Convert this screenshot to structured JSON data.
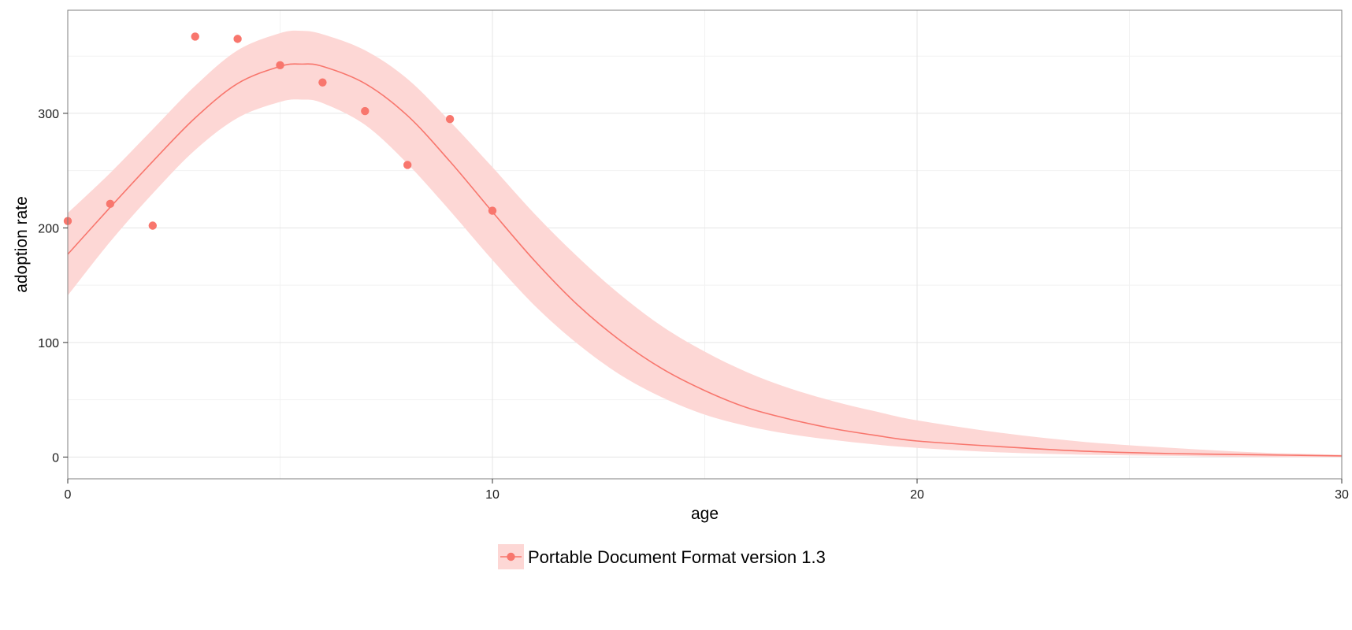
{
  "chart_data": {
    "type": "scatter",
    "xlabel": "age",
    "ylabel": "adoption rate",
    "xlim": [
      0,
      30
    ],
    "ylim": [
      -19,
      390
    ],
    "x_ticks": [
      0,
      10,
      20,
      30
    ],
    "y_ticks": [
      0,
      100,
      200,
      300
    ],
    "grid": true,
    "legend_position": "bottom",
    "series": [
      {
        "name": "Portable Document Format version 1.3",
        "color": "#F8766D",
        "ribbon_color": "#FDD7D5",
        "points": [
          {
            "x": 0,
            "y": 206
          },
          {
            "x": 1,
            "y": 221
          },
          {
            "x": 2,
            "y": 202
          },
          {
            "x": 3,
            "y": 367
          },
          {
            "x": 4,
            "y": 365
          },
          {
            "x": 5,
            "y": 342
          },
          {
            "x": 6,
            "y": 327
          },
          {
            "x": 7,
            "y": 302
          },
          {
            "x": 8,
            "y": 255
          },
          {
            "x": 9,
            "y": 295
          },
          {
            "x": 10,
            "y": 215
          }
        ],
        "fit": [
          {
            "x": 0,
            "y": 177,
            "lower": 141,
            "upper": 213
          },
          {
            "x": 1,
            "y": 218,
            "lower": 188,
            "upper": 248
          },
          {
            "x": 2,
            "y": 258,
            "lower": 230,
            "upper": 286
          },
          {
            "x": 3,
            "y": 296,
            "lower": 268,
            "upper": 324
          },
          {
            "x": 4,
            "y": 326,
            "lower": 296,
            "upper": 355
          },
          {
            "x": 5,
            "y": 341,
            "lower": 310,
            "upper": 370
          },
          {
            "x": 5.5,
            "y": 343,
            "lower": 312,
            "upper": 372
          },
          {
            "x": 6,
            "y": 341,
            "lower": 309,
            "upper": 369
          },
          {
            "x": 7,
            "y": 326,
            "lower": 290,
            "upper": 355
          },
          {
            "x": 8,
            "y": 298,
            "lower": 256,
            "upper": 330
          },
          {
            "x": 9,
            "y": 258,
            "lower": 215,
            "upper": 293
          },
          {
            "x": 10,
            "y": 214,
            "lower": 172,
            "upper": 253
          },
          {
            "x": 11,
            "y": 171,
            "lower": 132,
            "upper": 212
          },
          {
            "x": 12,
            "y": 133,
            "lower": 99,
            "upper": 175
          },
          {
            "x": 13,
            "y": 102,
            "lower": 72,
            "upper": 142
          },
          {
            "x": 14,
            "y": 77,
            "lower": 52,
            "upper": 114
          },
          {
            "x": 15,
            "y": 58,
            "lower": 37,
            "upper": 92
          },
          {
            "x": 16,
            "y": 43,
            "lower": 27,
            "upper": 74
          },
          {
            "x": 17,
            "y": 33,
            "lower": 20,
            "upper": 60
          },
          {
            "x": 18,
            "y": 25,
            "lower": 15,
            "upper": 49
          },
          {
            "x": 19,
            "y": 19,
            "lower": 11,
            "upper": 40
          },
          {
            "x": 20,
            "y": 14,
            "lower": 8,
            "upper": 32
          },
          {
            "x": 22,
            "y": 9,
            "lower": 4,
            "upper": 21
          },
          {
            "x": 24,
            "y": 5,
            "lower": 2,
            "upper": 13
          },
          {
            "x": 26,
            "y": 3,
            "lower": 1,
            "upper": 8
          },
          {
            "x": 28,
            "y": 2,
            "lower": 0,
            "upper": 4
          },
          {
            "x": 30,
            "y": 1,
            "lower": 0,
            "upper": 2
          }
        ]
      }
    ]
  }
}
